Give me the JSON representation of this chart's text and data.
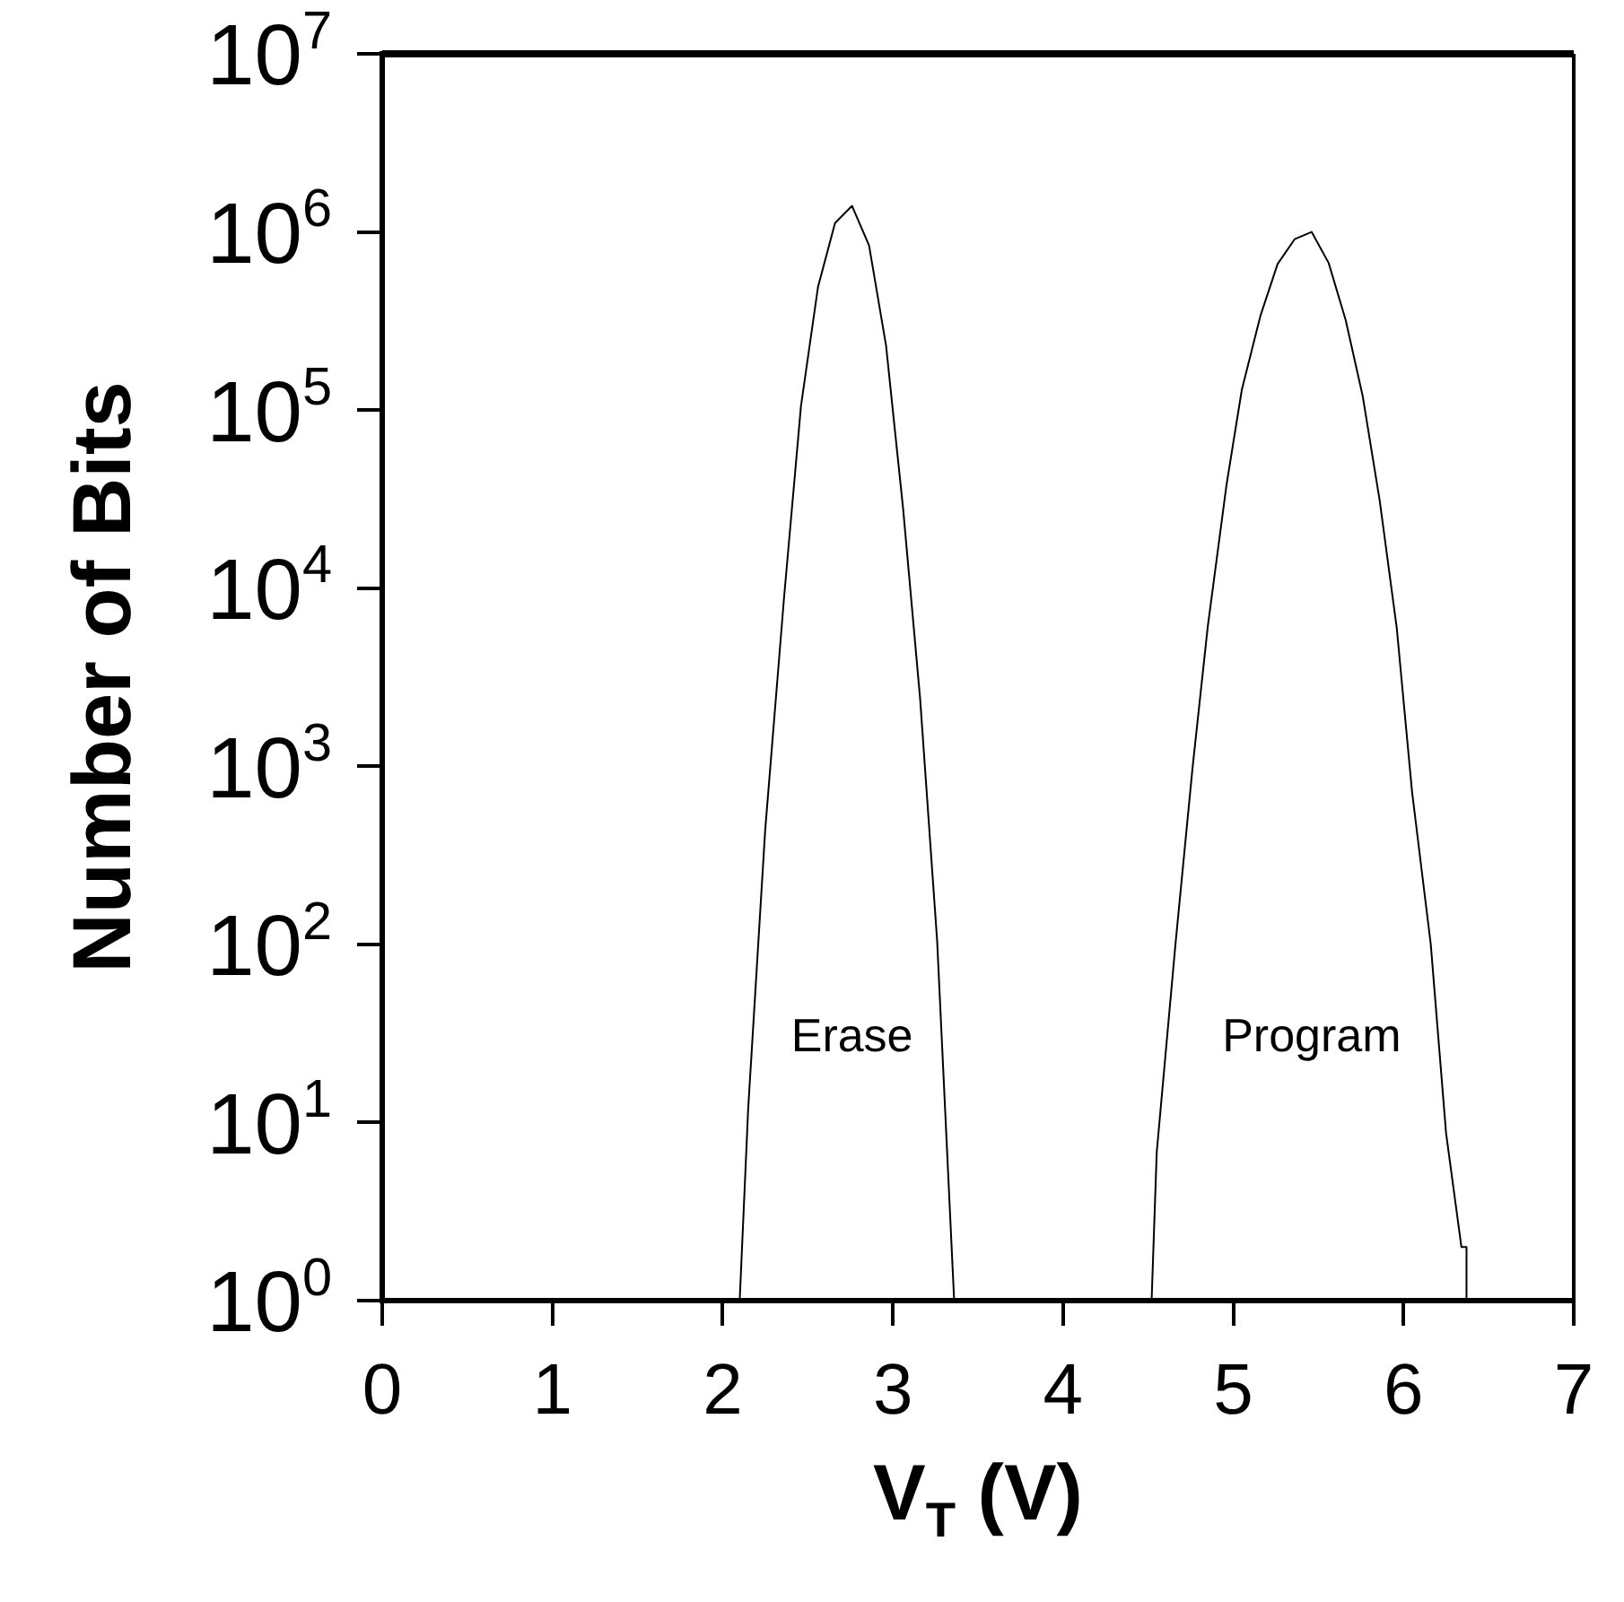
{
  "chart_data": {
    "type": "line",
    "xlabel": "V$_{T}$ (V)",
    "ylabel": "Number of Bits",
    "log": "y",
    "grid": false,
    "legend": false,
    "marker": "none",
    "line_style": "solid",
    "xlim": [
      0,
      7
    ],
    "xticks": [
      0,
      1,
      2,
      3,
      4,
      5,
      6,
      7
    ],
    "ylim": [
      1,
      10000000
    ],
    "yticks": [
      {
        "value": 1,
        "label": "10$^{0}$"
      },
      {
        "value": 10,
        "label": "10$^{1}$"
      },
      {
        "value": 100,
        "label": "10$^{2}$"
      },
      {
        "value": 1000,
        "label": "10$^{3}$"
      },
      {
        "value": 10000,
        "label": "10$^{4}$"
      },
      {
        "value": 100000,
        "label": "10$^{5}$"
      },
      {
        "value": 1000000,
        "label": "10$^{6}$"
      },
      {
        "value": 10000000,
        "label": "10$^{7}$"
      }
    ],
    "series": [
      {
        "name": "Erase",
        "color": "#000000",
        "x": [
          2.1,
          2.15,
          2.25,
          2.36,
          2.46,
          2.56,
          2.66,
          2.76,
          2.86,
          2.96,
          3.06,
          3.16,
          3.26,
          3.36
        ],
        "values": [
          1,
          12,
          440,
          8700,
          105000,
          490000,
          1120000,
          1400000,
          840000,
          230000,
          28000,
          2400,
          105,
          1
        ]
      },
      {
        "name": "Program",
        "color": "#000000",
        "x": [
          4.52,
          4.55,
          4.66,
          4.76,
          4.85,
          4.96,
          5.05,
          5.16,
          5.26,
          5.36,
          5.46,
          5.56,
          5.66,
          5.76,
          5.86,
          5.96,
          6.05,
          6.16,
          6.25,
          6.34,
          6.37,
          6.37
        ],
        "values": [
          1,
          6.8,
          100,
          970,
          6100,
          38000,
          130000,
          340000,
          660000,
          910000,
          1000000,
          670000,
          320000,
          120000,
          31000,
          6000,
          720,
          100,
          8.7,
          2,
          2,
          1
        ]
      }
    ]
  }
}
